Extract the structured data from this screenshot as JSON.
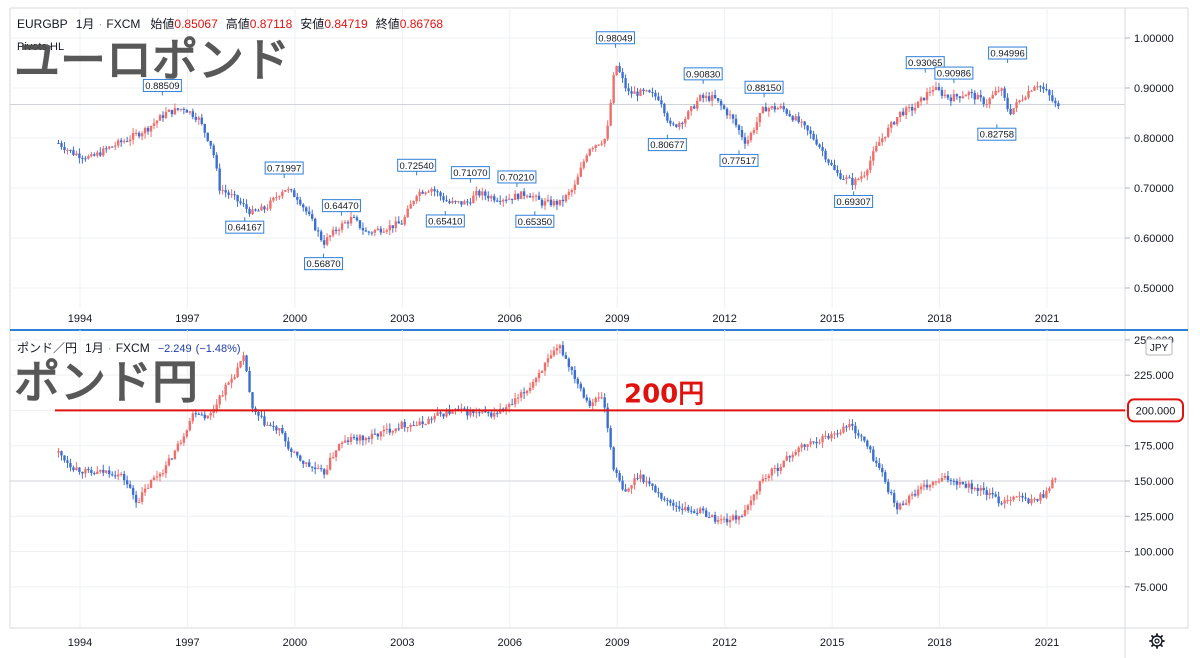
{
  "chart_data": [
    {
      "type": "candlestick",
      "symbol": "EURGBP",
      "timeframe": "1月",
      "source": "FXCM",
      "overlay_title": "ユーロポンド",
      "indicator": "Pivots HL",
      "ohlc": {
        "open_label": "始値",
        "open": "0.85067",
        "high_label": "高値",
        "high": "0.87118",
        "low_label": "安値",
        "low": "0.84719",
        "close_label": "終値",
        "close": "0.86768"
      },
      "ylim": [
        0.46,
        1.06
      ],
      "y_ticks": [
        "0.50000",
        "0.60000",
        "0.70000",
        "0.80000",
        "0.90000",
        "1.00000"
      ],
      "x_ticks": [
        "1994",
        "1997",
        "2000",
        "2003",
        "2006",
        "2009",
        "2012",
        "2015",
        "2018",
        "2021"
      ],
      "price_line": 0.867,
      "anchors": [
        [
          1993.4,
          0.79
        ],
        [
          1993.8,
          0.77
        ],
        [
          1994.3,
          0.76
        ],
        [
          1994.8,
          0.78
        ],
        [
          1995.4,
          0.8
        ],
        [
          1995.9,
          0.82
        ],
        [
          1996.4,
          0.85
        ],
        [
          1996.9,
          0.86
        ],
        [
          1997.3,
          0.84
        ],
        [
          1997.7,
          0.78
        ],
        [
          1997.9,
          0.7
        ],
        [
          1998.3,
          0.68
        ],
        [
          1998.8,
          0.65
        ],
        [
          1999.2,
          0.66
        ],
        [
          1999.7,
          0.7
        ],
        [
          2000.1,
          0.68
        ],
        [
          2000.5,
          0.63
        ],
        [
          2000.8,
          0.59
        ],
        [
          2001.2,
          0.62
        ],
        [
          2001.6,
          0.64
        ],
        [
          2002.0,
          0.61
        ],
        [
          2002.5,
          0.62
        ],
        [
          2003.0,
          0.63
        ],
        [
          2003.4,
          0.69
        ],
        [
          2003.8,
          0.7
        ],
        [
          2004.3,
          0.67
        ],
        [
          2004.8,
          0.67
        ],
        [
          2005.1,
          0.69
        ],
        [
          2005.6,
          0.68
        ],
        [
          2006.0,
          0.68
        ],
        [
          2006.5,
          0.69
        ],
        [
          2006.9,
          0.67
        ],
        [
          2007.4,
          0.67
        ],
        [
          2007.8,
          0.7
        ],
        [
          2008.2,
          0.78
        ],
        [
          2008.7,
          0.8
        ],
        [
          2008.95,
          0.95
        ],
        [
          2009.3,
          0.89
        ],
        [
          2009.8,
          0.89
        ],
        [
          2010.2,
          0.88
        ],
        [
          2010.5,
          0.82
        ],
        [
          2010.9,
          0.84
        ],
        [
          2011.3,
          0.88
        ],
        [
          2011.7,
          0.88
        ],
        [
          2012.2,
          0.84
        ],
        [
          2012.6,
          0.79
        ],
        [
          2013.1,
          0.86
        ],
        [
          2013.6,
          0.86
        ],
        [
          2014.1,
          0.83
        ],
        [
          2014.6,
          0.79
        ],
        [
          2015.1,
          0.73
        ],
        [
          2015.6,
          0.71
        ],
        [
          2015.9,
          0.73
        ],
        [
          2016.3,
          0.79
        ],
        [
          2016.9,
          0.85
        ],
        [
          2017.3,
          0.86
        ],
        [
          2017.8,
          0.9
        ],
        [
          2018.3,
          0.88
        ],
        [
          2018.8,
          0.89
        ],
        [
          2019.3,
          0.87
        ],
        [
          2019.7,
          0.9
        ],
        [
          2019.95,
          0.85
        ],
        [
          2020.3,
          0.88
        ],
        [
          2020.7,
          0.91
        ],
        [
          2021.0,
          0.89
        ],
        [
          2021.3,
          0.86
        ]
      ],
      "pivots": [
        {
          "x": 1996.3,
          "value": 0.88509,
          "label": "0.88509",
          "pos": "above"
        },
        {
          "x": 1998.6,
          "value": 0.64167,
          "label": "0.64167",
          "pos": "below"
        },
        {
          "x": 1999.7,
          "value": 0.71997,
          "label": "0.71997",
          "pos": "above"
        },
        {
          "x": 2000.8,
          "value": 0.5687,
          "label": "0.56870",
          "pos": "below"
        },
        {
          "x": 2001.3,
          "value": 0.6447,
          "label": "0.64470",
          "pos": "above"
        },
        {
          "x": 2003.4,
          "value": 0.7254,
          "label": "0.72540",
          "pos": "above"
        },
        {
          "x": 2004.2,
          "value": 0.6541,
          "label": "0.65410",
          "pos": "below"
        },
        {
          "x": 2004.9,
          "value": 0.7107,
          "label": "0.71070",
          "pos": "above"
        },
        {
          "x": 2006.2,
          "value": 0.7021,
          "label": "0.70210",
          "pos": "above"
        },
        {
          "x": 2006.7,
          "value": 0.6535,
          "label": "0.65350",
          "pos": "below"
        },
        {
          "x": 2008.95,
          "value": 0.98049,
          "label": "0.98049",
          "pos": "above"
        },
        {
          "x": 2010.4,
          "value": 0.80677,
          "label": "0.80677",
          "pos": "below"
        },
        {
          "x": 2011.4,
          "value": 0.9083,
          "label": "0.90830",
          "pos": "above"
        },
        {
          "x": 2012.4,
          "value": 0.77517,
          "label": "0.77517",
          "pos": "below"
        },
        {
          "x": 2013.1,
          "value": 0.8815,
          "label": "0.88150",
          "pos": "above"
        },
        {
          "x": 2015.6,
          "value": 0.69307,
          "label": "0.69307",
          "pos": "below"
        },
        {
          "x": 2017.6,
          "value": 0.93065,
          "label": "0.93065",
          "pos": "above"
        },
        {
          "x": 2018.4,
          "value": 0.90986,
          "label": "0.90986",
          "pos": "above"
        },
        {
          "x": 2019.6,
          "value": 0.82758,
          "label": "0.82758",
          "pos": "below"
        },
        {
          "x": 2019.9,
          "value": 0.94996,
          "label": "0.94996",
          "pos": "above"
        }
      ]
    },
    {
      "type": "candlestick",
      "symbol": "ポンド／円",
      "timeframe": "1月",
      "source": "FXCM",
      "overlay_title": "ポンド円",
      "change": "−2.249",
      "change_pct": "(−1.48%)",
      "currency": "JPY",
      "ylim": [
        60,
        257
      ],
      "y_ticks": [
        "75.000",
        "100.000",
        "125.000",
        "150.000",
        "175.000",
        "200.000",
        "225.000",
        "250.000"
      ],
      "x_ticks": [
        "1994",
        "1997",
        "2000",
        "2003",
        "2006",
        "2009",
        "2012",
        "2015",
        "2018",
        "2021"
      ],
      "price_line": 150,
      "level_line": {
        "value": 200,
        "label": "200円",
        "axis_label": "200.000",
        "color": "#e0120f"
      },
      "anchors": [
        [
          1993.4,
          170
        ],
        [
          1993.8,
          160
        ],
        [
          1994.3,
          155
        ],
        [
          1994.8,
          157
        ],
        [
          1995.2,
          153
        ],
        [
          1995.6,
          135
        ],
        [
          1996.0,
          150
        ],
        [
          1996.4,
          160
        ],
        [
          1996.8,
          178
        ],
        [
          1997.2,
          200
        ],
        [
          1997.6,
          195
        ],
        [
          1997.9,
          210
        ],
        [
          1998.3,
          225
        ],
        [
          1998.6,
          238
        ],
        [
          1998.8,
          200
        ],
        [
          1999.2,
          190
        ],
        [
          1999.6,
          185
        ],
        [
          1999.9,
          170
        ],
        [
          2000.3,
          162
        ],
        [
          2000.8,
          155
        ],
        [
          2001.2,
          175
        ],
        [
          2001.6,
          180
        ],
        [
          2002.0,
          180
        ],
        [
          2002.5,
          185
        ],
        [
          2003.0,
          190
        ],
        [
          2003.5,
          190
        ],
        [
          2004.0,
          197
        ],
        [
          2004.5,
          200
        ],
        [
          2005.0,
          198
        ],
        [
          2005.5,
          197
        ],
        [
          2006.0,
          203
        ],
        [
          2006.5,
          215
        ],
        [
          2006.9,
          230
        ],
        [
          2007.4,
          245
        ],
        [
          2007.8,
          225
        ],
        [
          2008.2,
          205
        ],
        [
          2008.6,
          210
        ],
        [
          2008.9,
          160
        ],
        [
          2009.2,
          140
        ],
        [
          2009.6,
          155
        ],
        [
          2010.0,
          145
        ],
        [
          2010.4,
          135
        ],
        [
          2010.9,
          130
        ],
        [
          2011.4,
          128
        ],
        [
          2011.8,
          122
        ],
        [
          2012.2,
          123
        ],
        [
          2012.6,
          128
        ],
        [
          2013.0,
          150
        ],
        [
          2013.5,
          160
        ],
        [
          2014.0,
          172
        ],
        [
          2014.5,
          178
        ],
        [
          2015.0,
          183
        ],
        [
          2015.5,
          190
        ],
        [
          2015.9,
          178
        ],
        [
          2016.4,
          155
        ],
        [
          2016.8,
          130
        ],
        [
          2017.2,
          140
        ],
        [
          2017.7,
          147
        ],
        [
          2018.2,
          152
        ],
        [
          2018.7,
          148
        ],
        [
          2019.3,
          142
        ],
        [
          2019.7,
          135
        ],
        [
          2020.1,
          140
        ],
        [
          2020.5,
          135
        ],
        [
          2020.9,
          140
        ],
        [
          2021.2,
          152
        ]
      ]
    }
  ],
  "settings_icon": "gear-icon"
}
